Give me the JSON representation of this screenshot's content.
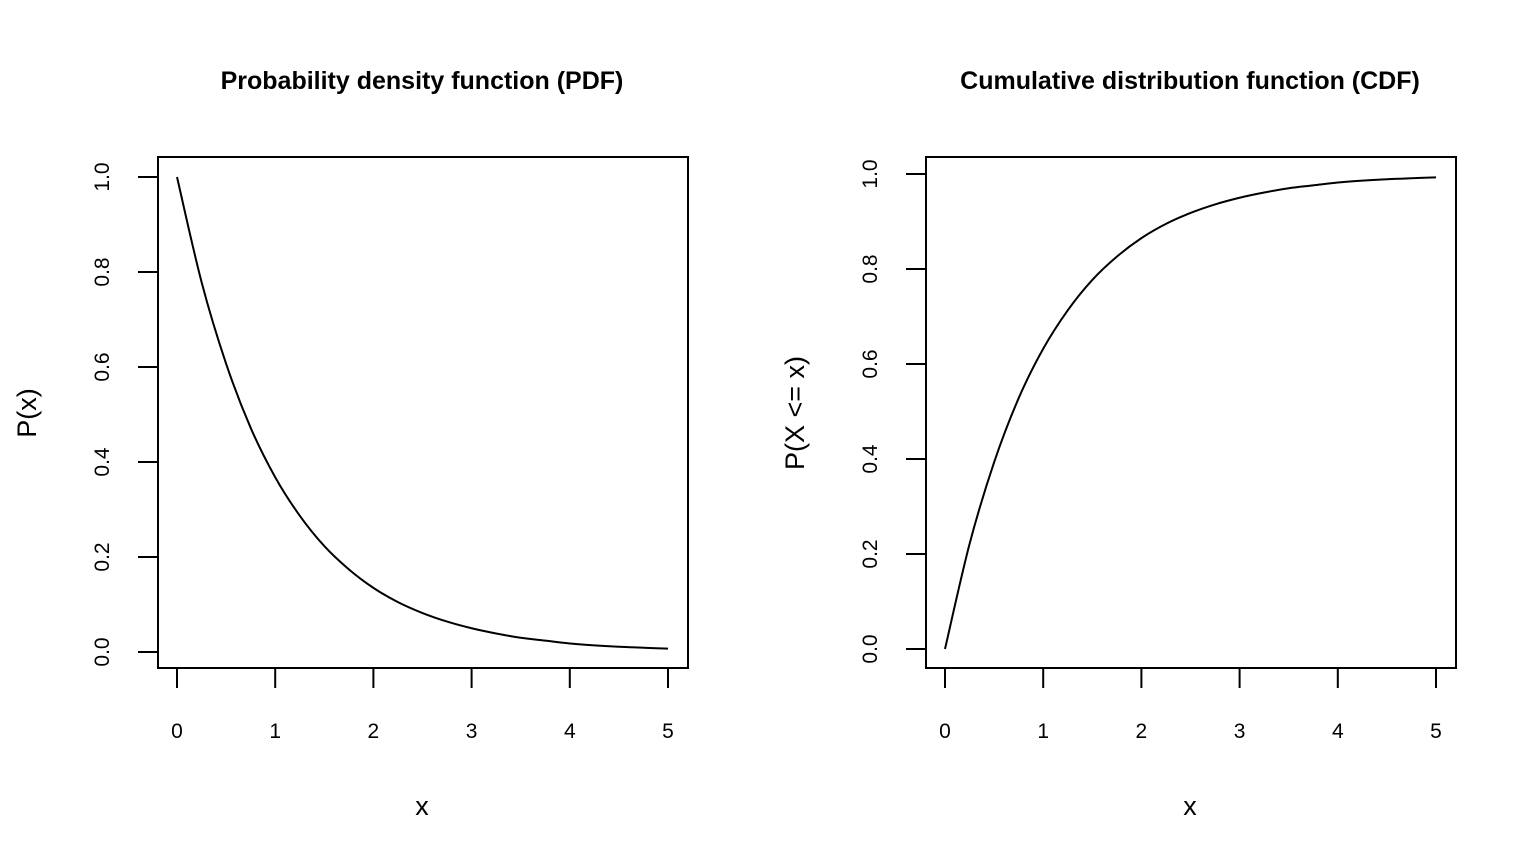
{
  "chart_data": [
    {
      "type": "line",
      "title": "Probability density function (PDF)",
      "xlabel": "x",
      "ylabel": "P(x)",
      "xlim": [
        0,
        5
      ],
      "ylim": [
        0,
        1
      ],
      "xticks": [
        "0",
        "1",
        "2",
        "3",
        "4",
        "5"
      ],
      "yticks": [
        "0.0",
        "0.2",
        "0.4",
        "0.6",
        "0.8",
        "1.0"
      ],
      "grid": false,
      "series": [
        {
          "name": "PDF",
          "x": [
            0,
            0.25,
            0.5,
            0.75,
            1,
            1.25,
            1.5,
            1.75,
            2,
            2.25,
            2.5,
            2.75,
            3,
            3.25,
            3.5,
            3.75,
            4,
            4.25,
            4.5,
            4.75,
            5
          ],
          "values": [
            1.0,
            0.779,
            0.607,
            0.472,
            0.368,
            0.287,
            0.223,
            0.174,
            0.135,
            0.105,
            0.082,
            0.064,
            0.05,
            0.039,
            0.03,
            0.024,
            0.018,
            0.014,
            0.011,
            0.009,
            0.007
          ]
        }
      ]
    },
    {
      "type": "line",
      "title": "Cumulative distribution function (CDF)",
      "xlabel": "x",
      "ylabel": "P(X <= x)",
      "xlim": [
        0,
        5
      ],
      "ylim": [
        0,
        1
      ],
      "xticks": [
        "0",
        "1",
        "2",
        "3",
        "4",
        "5"
      ],
      "yticks": [
        "0.0",
        "0.2",
        "0.4",
        "0.6",
        "0.8",
        "1.0"
      ],
      "grid": false,
      "series": [
        {
          "name": "CDF",
          "x": [
            0,
            0.25,
            0.5,
            0.75,
            1,
            1.25,
            1.5,
            1.75,
            2,
            2.25,
            2.5,
            2.75,
            3,
            3.25,
            3.5,
            3.75,
            4,
            4.25,
            4.5,
            4.75,
            5
          ],
          "values": [
            0.0,
            0.221,
            0.393,
            0.528,
            0.632,
            0.713,
            0.777,
            0.826,
            0.865,
            0.895,
            0.918,
            0.936,
            0.95,
            0.961,
            0.97,
            0.976,
            0.982,
            0.986,
            0.989,
            0.991,
            0.993
          ]
        }
      ]
    }
  ]
}
